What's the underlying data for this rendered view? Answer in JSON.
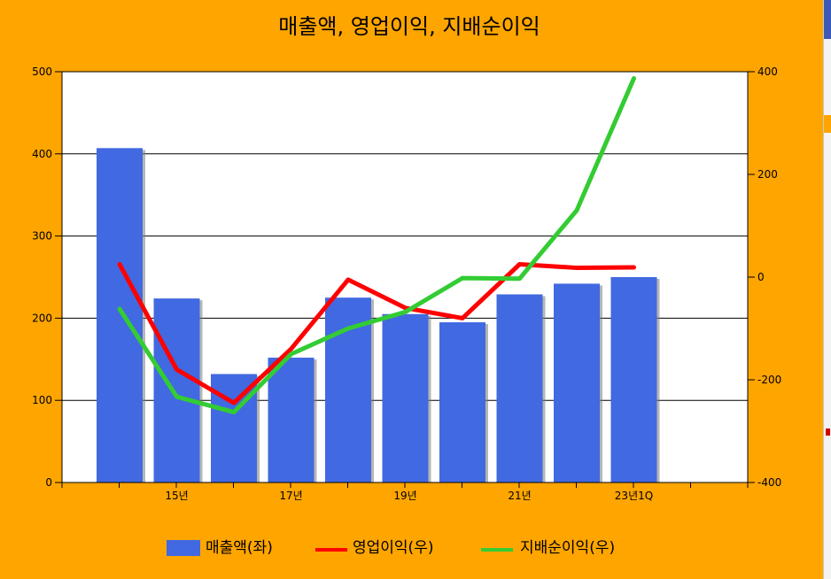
{
  "chart_data": {
    "type": "bar",
    "title": "매출액, 영업이익, 지배순이익",
    "categories": [
      "",
      "15년",
      "",
      "17년",
      "",
      "19년",
      "",
      "21년",
      "",
      "23년1Q"
    ],
    "x_tick_labels": [
      "15년",
      "17년",
      "19년",
      "21년",
      "23년1Q"
    ],
    "series": [
      {
        "name": "매출액(좌)",
        "type": "bar",
        "axis": "left",
        "color": "#4169E1",
        "values": [
          407,
          224,
          132,
          152,
          225,
          205,
          195,
          229,
          242,
          250
        ]
      },
      {
        "name": "영업이익(우)",
        "type": "line",
        "axis": "right",
        "color": "#FF0000",
        "values": [
          25,
          -180,
          -245,
          -140,
          -5,
          -60,
          -80,
          25,
          18,
          19
        ]
      },
      {
        "name": "지배순이익(우)",
        "type": "line",
        "axis": "right",
        "color": "#33CC33",
        "values": [
          -62,
          -233,
          -263,
          -150,
          -100,
          -68,
          -2,
          -3,
          130,
          387
        ]
      }
    ],
    "y_left": {
      "lim": [
        0,
        500
      ],
      "ticks": [
        0,
        100,
        200,
        300,
        400,
        500
      ]
    },
    "y_right": {
      "lim": [
        -400,
        400
      ],
      "ticks": [
        -400,
        -200,
        0,
        200,
        400
      ]
    },
    "grid": true,
    "legend_position": "bottom"
  }
}
